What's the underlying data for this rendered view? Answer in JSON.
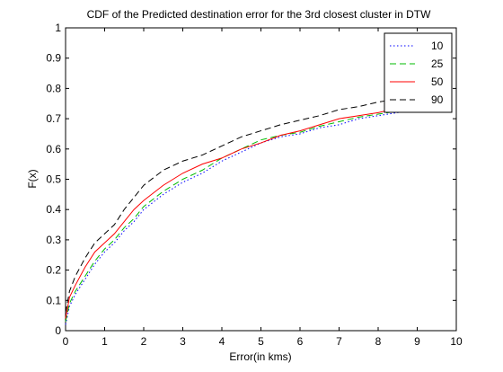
{
  "chart_data": {
    "type": "line",
    "title": "CDF of the Predicted destination error for the 3rd closest cluster in DTW",
    "xlabel": "Error(in kms)",
    "ylabel": "F(x)",
    "xlim": [
      0,
      10
    ],
    "ylim": [
      0,
      1
    ],
    "xticks": [
      0,
      1,
      2,
      3,
      4,
      5,
      6,
      7,
      8,
      9,
      10
    ],
    "yticks": [
      0,
      0.1,
      0.2,
      0.3,
      0.4,
      0.5,
      0.6,
      0.7,
      0.8,
      0.9,
      1
    ],
    "grid": false,
    "legend_position": "top-right",
    "x": [
      0,
      0.1,
      0.25,
      0.5,
      0.75,
      1,
      1.25,
      1.5,
      1.75,
      2,
      2.5,
      3,
      3.5,
      4,
      4.5,
      5,
      5.5,
      6,
      6.5,
      7,
      7.5,
      8,
      8.5,
      9,
      9.5,
      9.8
    ],
    "series": [
      {
        "name": "10",
        "color": "#0000ff",
        "dash": "dotted",
        "values": [
          0.02,
          0.08,
          0.12,
          0.17,
          0.22,
          0.26,
          0.29,
          0.33,
          0.36,
          0.4,
          0.45,
          0.49,
          0.52,
          0.56,
          0.59,
          0.62,
          0.64,
          0.65,
          0.67,
          0.68,
          0.7,
          0.71,
          0.72,
          0.74,
          0.75,
          0.76
        ]
      },
      {
        "name": "25",
        "color": "#00bb00",
        "dash": "dashed",
        "values": [
          0.03,
          0.09,
          0.13,
          0.18,
          0.23,
          0.27,
          0.3,
          0.34,
          0.37,
          0.41,
          0.46,
          0.5,
          0.53,
          0.57,
          0.6,
          0.63,
          0.645,
          0.655,
          0.675,
          0.69,
          0.705,
          0.715,
          0.725,
          0.74,
          0.75,
          0.76
        ]
      },
      {
        "name": "50",
        "color": "#ff0000",
        "dash": "solid",
        "values": [
          0.04,
          0.11,
          0.15,
          0.21,
          0.26,
          0.29,
          0.32,
          0.36,
          0.4,
          0.43,
          0.48,
          0.52,
          0.55,
          0.57,
          0.6,
          0.62,
          0.645,
          0.66,
          0.68,
          0.7,
          0.71,
          0.72,
          0.735,
          0.745,
          0.755,
          0.765
        ]
      },
      {
        "name": "90",
        "color": "#000000",
        "dash": "dashed",
        "values": [
          0.06,
          0.13,
          0.18,
          0.24,
          0.29,
          0.32,
          0.35,
          0.4,
          0.44,
          0.48,
          0.53,
          0.56,
          0.58,
          0.61,
          0.64,
          0.66,
          0.68,
          0.695,
          0.71,
          0.73,
          0.74,
          0.755,
          0.765,
          0.775,
          0.775,
          0.78
        ]
      }
    ]
  }
}
